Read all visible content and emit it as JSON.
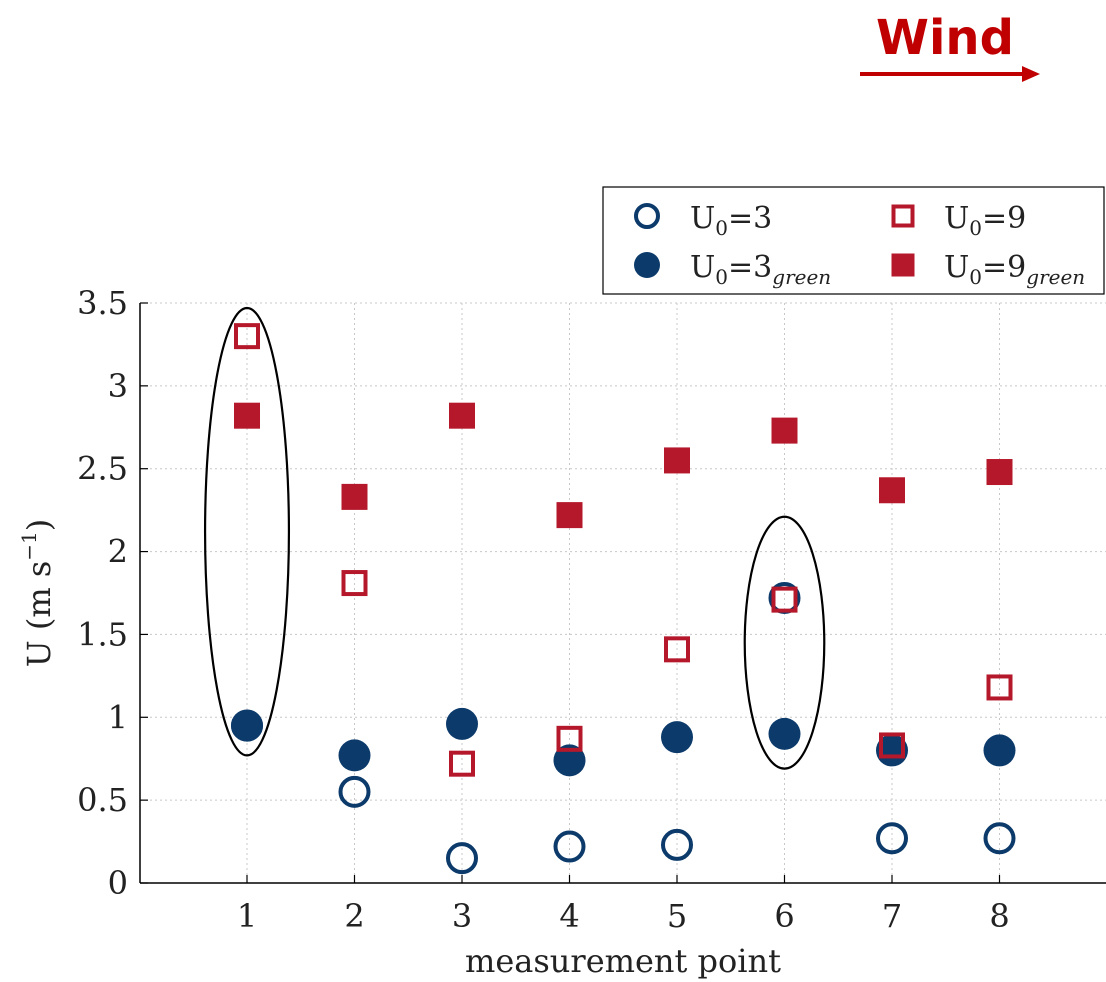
{
  "chart_data": {
    "type": "scatter",
    "title": "",
    "xlabel": "measurement point",
    "ylabel": "U (m s",
    "ylabel_sup": "−1",
    "ylabel_close": ")",
    "xlim": [
      0,
      9
    ],
    "ylim": [
      0,
      3.5
    ],
    "x_ticks": [
      1,
      2,
      3,
      4,
      5,
      6,
      7,
      8
    ],
    "y_ticks": [
      0,
      0.5,
      1,
      1.5,
      2,
      2.5,
      3,
      3.5
    ],
    "y_tick_labels": [
      "0",
      "0.5",
      "1",
      "1.5",
      "2",
      "2.5",
      "3",
      "3.5"
    ],
    "grid": true,
    "legend_position": "top-right",
    "series": [
      {
        "name": "U",
        "sub": "0",
        "suffix": "=3",
        "suffix_sub": "",
        "marker": "open-circle",
        "color": "#0b3a6b",
        "x": [
          1,
          2,
          3,
          4,
          5,
          6,
          7,
          8
        ],
        "y": [
          0.95,
          0.55,
          0.15,
          0.22,
          0.23,
          1.72,
          0.27,
          0.27
        ]
      },
      {
        "name": "U",
        "sub": "0",
        "suffix": "=3",
        "suffix_sub": "green",
        "marker": "filled-circle",
        "color": "#0b3a6b",
        "x": [
          1,
          2,
          3,
          4,
          5,
          6,
          7,
          8
        ],
        "y": [
          0.95,
          0.77,
          0.96,
          0.74,
          0.88,
          0.9,
          0.8,
          0.8
        ]
      },
      {
        "name": "U",
        "sub": "0",
        "suffix": "=9",
        "suffix_sub": "",
        "marker": "open-square",
        "color": "#b5182b",
        "x": [
          1,
          2,
          3,
          4,
          5,
          6,
          7,
          8
        ],
        "y": [
          3.3,
          1.81,
          0.72,
          0.87,
          1.41,
          1.71,
          0.83,
          1.18
        ]
      },
      {
        "name": "U",
        "sub": "0",
        "suffix": "=9",
        "suffix_sub": "green",
        "marker": "filled-square",
        "color": "#b5182b",
        "x": [
          1,
          2,
          3,
          4,
          5,
          6,
          7,
          8
        ],
        "y": [
          2.82,
          2.33,
          2.82,
          2.22,
          2.55,
          2.73,
          2.37,
          2.48
        ]
      }
    ],
    "annotations": [
      {
        "type": "ellipse",
        "x_center": 1,
        "y_center": 2.12,
        "x_half": 0.39,
        "y_half": 1.35,
        "color": "#000000"
      },
      {
        "type": "ellipse",
        "x_center": 6,
        "y_center": 1.45,
        "x_half": 0.37,
        "y_half": 0.76,
        "color": "#000000"
      }
    ]
  },
  "wind_label": {
    "text": "Wind",
    "color": "#c00000"
  }
}
